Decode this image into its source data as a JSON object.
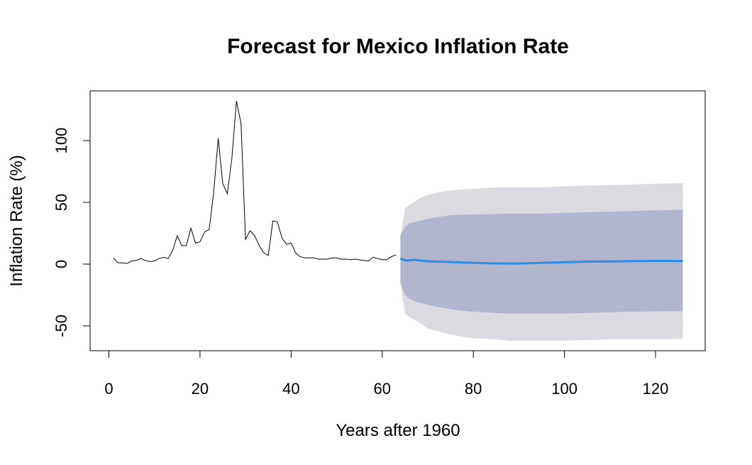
{
  "chart_data": {
    "type": "line",
    "title": "Forecast for Mexico Inflation Rate",
    "xlabel": "Years after 1960",
    "ylabel": "Inflation Rate (%)",
    "xlim": [
      -3,
      130
    ],
    "ylim": [
      -70,
      140
    ],
    "xticks": [
      0,
      20,
      40,
      60,
      80,
      100,
      120
    ],
    "yticks": [
      -50,
      0,
      50,
      100
    ],
    "grid": false,
    "colors": {
      "observed": "#000000",
      "forecast": "#2a8ee6",
      "band80": "#b1b5ce",
      "band95": "#dadae0",
      "frame": "#000000"
    },
    "series": [
      {
        "x": [
          1,
          2,
          3,
          4,
          5,
          6,
          7,
          8,
          9,
          10,
          11,
          12,
          13,
          14,
          15,
          16,
          17,
          18,
          19,
          20,
          21,
          22,
          23,
          24,
          25,
          26,
          27,
          28,
          29,
          30,
          31,
          32,
          33,
          34,
          35,
          36,
          37,
          38,
          39,
          40,
          41,
          42,
          43,
          44,
          45,
          46,
          47,
          48,
          49,
          50,
          51,
          52,
          53,
          54,
          55,
          56,
          57,
          58,
          59,
          60,
          61,
          62,
          63
        ],
        "values": [
          5,
          1,
          1,
          0.5,
          2.5,
          3,
          4.5,
          3,
          2,
          2.5,
          4.5,
          5.5,
          4.5,
          11,
          23,
          15,
          15,
          29,
          17,
          18,
          26,
          28,
          58,
          102,
          65,
          57,
          86,
          132,
          114,
          20,
          27,
          23,
          15,
          9,
          7,
          35,
          34,
          21,
          16,
          17,
          9,
          6,
          5,
          5,
          5,
          4,
          4,
          4,
          5,
          5,
          4,
          4,
          3.5,
          4,
          3.5,
          3,
          2.5,
          5.5,
          4.5,
          3.5,
          3.5,
          6,
          7.5
        ]
      },
      {
        "x": [
          64,
          65,
          66,
          67,
          68,
          70,
          72,
          75,
          78,
          80,
          85,
          88,
          90,
          95,
          100,
          105,
          110,
          115,
          120,
          126
        ],
        "values": [
          4.5,
          3,
          3,
          3.5,
          3,
          2.3,
          2,
          1.7,
          1.2,
          1,
          0.6,
          0.5,
          0.5,
          1,
          1.5,
          2,
          2.1,
          2.4,
          2.6,
          2.5
        ]
      }
    ],
    "intervals": {
      "x": [
        64,
        65,
        66,
        67,
        68,
        70,
        72,
        75,
        78,
        80,
        85,
        88,
        90,
        95,
        100,
        105,
        110,
        115,
        120,
        126
      ],
      "lo80": [
        -15,
        -25,
        -28,
        -30,
        -31,
        -33,
        -34.5,
        -36.5,
        -38,
        -38.5,
        -39.5,
        -40,
        -40,
        -40,
        -40,
        -39.5,
        -39,
        -38.5,
        -38.3,
        -38
      ],
      "hi80": [
        23,
        30,
        33,
        34,
        35,
        36.5,
        38,
        39.5,
        40,
        40,
        40.5,
        41,
        41,
        41,
        41.5,
        42,
        42.5,
        43,
        43.5,
        44
      ],
      "lo95": [
        -15,
        -40,
        -43,
        -45,
        -47,
        -52,
        -54,
        -57,
        -59,
        -60,
        -61,
        -62,
        -62,
        -62,
        -62,
        -61.5,
        -61,
        -61,
        -61,
        -60.5
      ],
      "hi95": [
        23,
        45,
        48,
        50,
        53,
        56,
        58,
        59.5,
        60.5,
        61,
        62,
        62,
        62,
        62,
        63,
        63.5,
        64,
        64.5,
        65,
        65.5
      ]
    }
  }
}
